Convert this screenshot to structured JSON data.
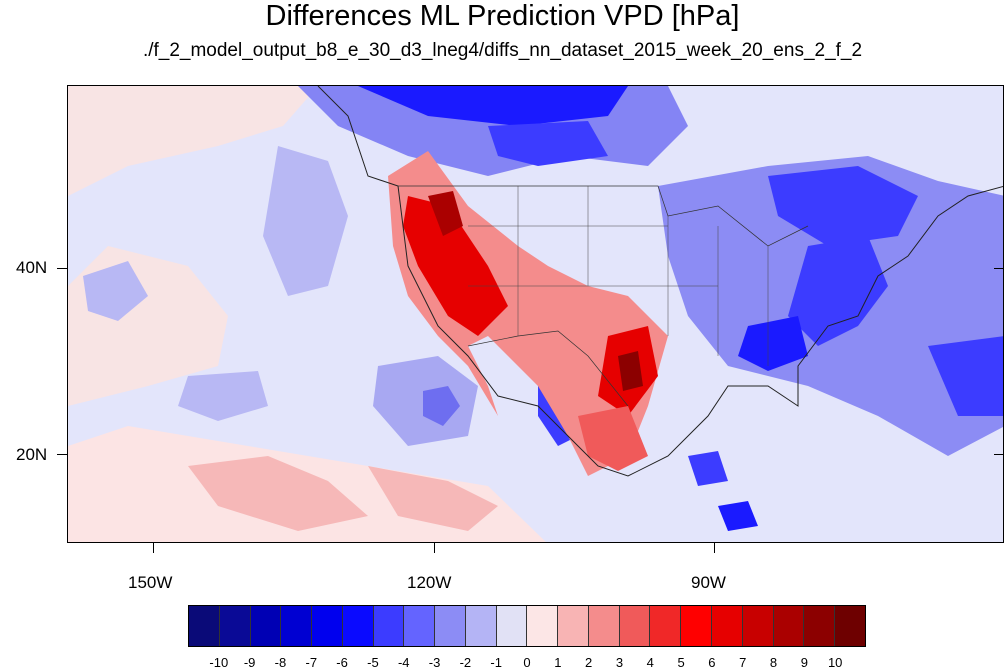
{
  "title": "Differences ML Prediction VPD [hPa]",
  "subtitle": "./f_2_model_output_b8_e_30_d3_lneg4/diffs_nn_dataset_2015_week_20_ens_2_f_2",
  "x_ticks": [
    "150W",
    "120W",
    "90W"
  ],
  "y_ticks": [
    "40N",
    "20N"
  ],
  "colorbar": {
    "labels": [
      "-10",
      "-9",
      "-8",
      "-7",
      "-6",
      "-5",
      "-4",
      "-3",
      "-2",
      "-1",
      "0",
      "1",
      "2",
      "3",
      "4",
      "5",
      "6",
      "7",
      "8",
      "9",
      "10"
    ],
    "colors": [
      "#0a0a78",
      "#0a0a96",
      "#0000b4",
      "#0000d2",
      "#0000ee",
      "#0a0aff",
      "#3c3cff",
      "#6464ff",
      "#8c8cf5",
      "#b4b4f5",
      "#e1e1f5",
      "#fce6e6",
      "#f8b4b4",
      "#f48c8c",
      "#f05a5a",
      "#f02828",
      "#ff0000",
      "#e60000",
      "#c80000",
      "#aa0000",
      "#8c0000",
      "#6e0000"
    ]
  }
}
